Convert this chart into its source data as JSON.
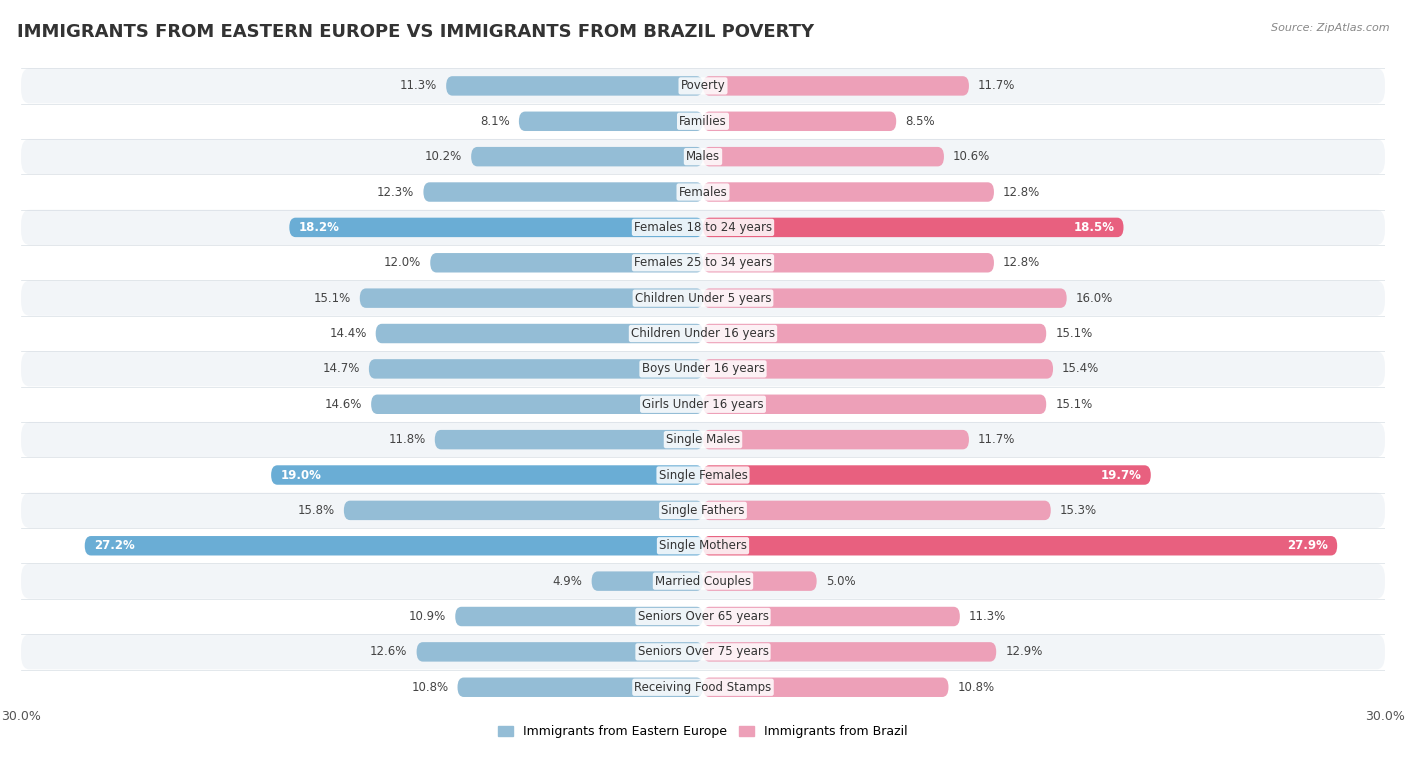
{
  "title": "IMMIGRANTS FROM EASTERN EUROPE VS IMMIGRANTS FROM BRAZIL POVERTY",
  "source": "Source: ZipAtlas.com",
  "categories": [
    "Poverty",
    "Families",
    "Males",
    "Females",
    "Females 18 to 24 years",
    "Females 25 to 34 years",
    "Children Under 5 years",
    "Children Under 16 years",
    "Boys Under 16 years",
    "Girls Under 16 years",
    "Single Males",
    "Single Females",
    "Single Fathers",
    "Single Mothers",
    "Married Couples",
    "Seniors Over 65 years",
    "Seniors Over 75 years",
    "Receiving Food Stamps"
  ],
  "left_values": [
    11.3,
    8.1,
    10.2,
    12.3,
    18.2,
    12.0,
    15.1,
    14.4,
    14.7,
    14.6,
    11.8,
    19.0,
    15.8,
    27.2,
    4.9,
    10.9,
    12.6,
    10.8
  ],
  "right_values": [
    11.7,
    8.5,
    10.6,
    12.8,
    18.5,
    12.8,
    16.0,
    15.1,
    15.4,
    15.1,
    11.7,
    19.7,
    15.3,
    27.9,
    5.0,
    11.3,
    12.9,
    10.8
  ],
  "left_color_normal": "#94bdd6",
  "right_color_normal": "#eda0b8",
  "left_color_highlight": "#6aadd5",
  "right_color_highlight": "#e8607f",
  "highlight_rows": [
    4,
    11,
    13
  ],
  "left_label": "Immigrants from Eastern Europe",
  "right_label": "Immigrants from Brazil",
  "xlim": 30.0,
  "background_color": "#ffffff",
  "row_even_color": "#f2f5f8",
  "row_odd_color": "#ffffff",
  "sep_line_color": "#d8dee4",
  "title_fontsize": 13,
  "cat_fontsize": 8.5,
  "value_fontsize": 8.5,
  "bar_height": 0.55
}
